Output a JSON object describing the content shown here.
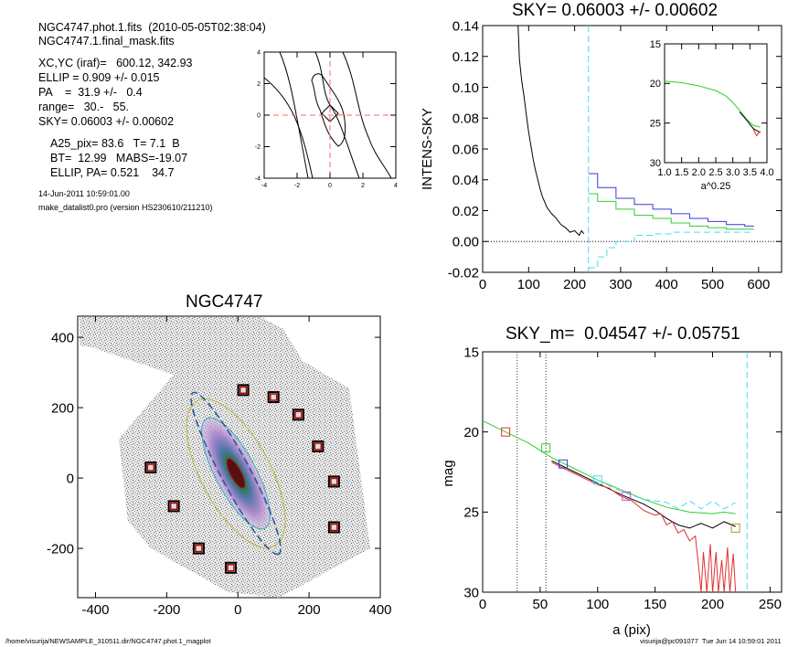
{
  "info": {
    "file_line": "NGC4747.phot.1.fits  (2010-05-05T02:38:04)",
    "mask_line": "NGC4747.1.final_mask.fits",
    "xcyc_line": "XC,YC (iraf)=   600.12, 342.93",
    "ellip_line": "ELLIP = 0.909 +/- 0.015",
    "pa_line": "PA    =  31.9 +/-   0.4",
    "range_line": "range=   30.-   55.",
    "sky_line": "SKY= 0.06003 +/- 0.00602",
    "a25_line": "A25_pix= 83.6   T= 7.1  B",
    "bt_line": "BT=  12.99   MABS=-19.07",
    "ellip_pa_line": "ELLIP, PA= 0.521    34.7",
    "date_line": "14-Jun-2011 10:59:01.00",
    "prog_line": "make_datalist0.pro (version HS230610/211210)"
  },
  "footer": {
    "left": "/home/visurija/NEWSAMPLE_310511.dir/NGC4747.phot.1_magplot",
    "right": "visurija@pc091077  Tue Jun 14 10:59:01 2011"
  },
  "colors": {
    "black_profile": "#000000",
    "blue_profile": "#3b3bd6",
    "green_profile": "#33cc33",
    "cyan_dashed": "#44ddee",
    "red_profile": "#e03030",
    "red_marker": "#aa0000",
    "axis": "#000000",
    "dotted_line": "#333333"
  },
  "chart_data": [
    {
      "id": "contour",
      "type": "contour",
      "xlim": [
        -4,
        4
      ],
      "ylim": [
        -4,
        4
      ],
      "xticks": [
        -4,
        -2,
        0,
        2,
        4
      ],
      "yticks": [
        -4,
        -2,
        0,
        2,
        4
      ],
      "crosshair": [
        0,
        0
      ]
    },
    {
      "id": "intens",
      "type": "line",
      "title": "SKY= 0.06003 +/- 0.00602",
      "ylabel": "INTENS-SKY",
      "xlim": [
        0,
        650
      ],
      "ylim": [
        -0.02,
        0.14
      ],
      "xticks": [
        0,
        100,
        200,
        300,
        400,
        500,
        600
      ],
      "yticks": [
        -0.02,
        0.0,
        0.02,
        0.04,
        0.06,
        0.08,
        0.1,
        0.12,
        0.14
      ],
      "ytick_labels": [
        "-0.02",
        "0.00",
        "0.02",
        "0.04",
        "0.06",
        "0.08",
        "0.10",
        "0.12",
        "0.14"
      ],
      "zero_line": true,
      "sky_radius": 230,
      "series": [
        {
          "color": "black",
          "x": [
            77,
            80,
            85,
            90,
            95,
            100,
            105,
            110,
            115,
            120,
            125,
            130,
            140,
            150,
            160,
            170,
            180,
            190,
            200,
            210,
            215,
            220
          ],
          "y": [
            0.14,
            0.118,
            0.104,
            0.094,
            0.082,
            0.071,
            0.062,
            0.053,
            0.046,
            0.04,
            0.034,
            0.029,
            0.022,
            0.018,
            0.015,
            0.011,
            0.009,
            0.006,
            0.007,
            0.004,
            0.007,
            0.005
          ]
        },
        {
          "color": "blue",
          "step": true,
          "x": [
            230,
            250,
            290,
            330,
            370,
            410,
            450,
            490,
            530,
            570
          ],
          "y": [
            0.044,
            0.035,
            0.028,
            0.024,
            0.021,
            0.018,
            0.015,
            0.013,
            0.011,
            0.01
          ]
        },
        {
          "color": "green",
          "step": true,
          "x": [
            230,
            250,
            290,
            330,
            370,
            410,
            450,
            490,
            530,
            570
          ],
          "y": [
            0.031,
            0.026,
            0.021,
            0.017,
            0.015,
            0.012,
            0.01,
            0.009,
            0.008,
            0.008
          ]
        },
        {
          "color": "cyan",
          "step": true,
          "x": [
            230,
            250,
            270,
            290,
            330,
            370,
            410,
            450,
            490,
            530,
            570
          ],
          "y": [
            -0.017,
            -0.01,
            -0.004,
            0.0,
            0.004,
            0.005,
            0.006,
            0.006,
            0.006,
            0.006,
            0.006
          ]
        }
      ]
    },
    {
      "id": "inset",
      "type": "line",
      "xlabel": "a^0.25",
      "xlim": [
        1.0,
        4.0
      ],
      "ylim": [
        15,
        30
      ],
      "y_reversed": true,
      "xticks": [
        1.0,
        1.5,
        2.0,
        2.5,
        3.0,
        3.5,
        4.0
      ],
      "xtick_labels": [
        "1.0",
        "1.5",
        "2.0",
        "2.5",
        "3.0",
        "3.5",
        "4.0"
      ],
      "yticks": [
        15,
        20,
        25,
        30
      ],
      "series": [
        {
          "color": "green",
          "x": [
            1.0,
            1.5,
            2.0,
            2.5,
            2.8,
            3.0,
            3.2,
            3.4,
            3.6,
            3.8
          ],
          "y": [
            19.7,
            19.9,
            20.3,
            20.9,
            21.6,
            22.4,
            23.4,
            24.5,
            25.3,
            25.5
          ]
        },
        {
          "color": "black",
          "x": [
            3.2,
            3.4,
            3.6,
            3.8
          ],
          "y": [
            23.6,
            24.6,
            25.7,
            26.2
          ]
        },
        {
          "color": "red",
          "x": [
            3.6,
            3.7,
            3.8
          ],
          "y": [
            25.8,
            26.6,
            26.0
          ]
        }
      ]
    },
    {
      "id": "image",
      "type": "scatter",
      "title": "NGC4747",
      "xlim": [
        -450,
        400
      ],
      "ylim": [
        -340,
        460
      ],
      "xticks": [
        -400,
        -200,
        0,
        200,
        400
      ],
      "yticks": [
        -200,
        0,
        200,
        400
      ],
      "markers": {
        "x": [
          15,
          100,
          170,
          225,
          270,
          270,
          -245,
          -180,
          -110,
          -20
        ],
        "y": [
          250,
          230,
          180,
          90,
          -10,
          -140,
          30,
          -80,
          -200,
          -255
        ]
      }
    },
    {
      "id": "mag",
      "type": "line",
      "title": "SKY_m=  0.04547 +/- 0.05751",
      "xlabel": "a (pix)",
      "ylabel": "mag",
      "xlim": [
        0,
        260
      ],
      "ylim": [
        15,
        30
      ],
      "y_reversed": true,
      "xticks": [
        0,
        50,
        100,
        150,
        200,
        250
      ],
      "yticks": [
        15,
        20,
        25,
        30
      ],
      "vlines": [
        30,
        55
      ],
      "sky_radius": 230,
      "series": [
        {
          "color": "green",
          "x": [
            0,
            20,
            40,
            60,
            80,
            100,
            120,
            140,
            160,
            180,
            200,
            210,
            220
          ],
          "y": [
            19.3,
            20.0,
            20.7,
            21.6,
            22.3,
            23.0,
            23.6,
            24.2,
            24.7,
            25.0,
            25.1,
            25.0,
            25.1
          ]
        },
        {
          "color": "cyan",
          "dashed": true,
          "x": [
            100,
            120,
            140,
            160,
            170,
            180,
            190,
            200,
            210,
            220
          ],
          "y": [
            23.0,
            23.7,
            24.2,
            24.4,
            24.8,
            24.3,
            24.8,
            24.3,
            24.8,
            24.4
          ]
        },
        {
          "color": "black",
          "x": [
            60,
            80,
            100,
            120,
            140,
            150,
            160,
            170,
            180,
            190,
            200,
            210,
            220
          ],
          "y": [
            21.8,
            22.5,
            23.2,
            23.9,
            24.5,
            24.9,
            25.4,
            25.8,
            26.0,
            25.7,
            26.0,
            25.6,
            25.9
          ]
        },
        {
          "color": "red",
          "x": [
            60,
            80,
            100,
            110,
            120,
            130,
            140,
            150,
            155,
            160,
            165,
            170,
            175,
            180,
            185,
            188,
            190,
            192,
            195,
            198,
            200,
            203,
            205,
            208,
            210,
            213,
            215,
            218,
            220
          ],
          "y": [
            21.9,
            22.6,
            23.3,
            23.5,
            24.0,
            24.3,
            24.9,
            25.2,
            25.1,
            25.8,
            25.6,
            26.3,
            26.1,
            26.8,
            26.5,
            28.5,
            30,
            27.5,
            30,
            27.0,
            30,
            27.5,
            30,
            28.0,
            30,
            27.2,
            30,
            27.6,
            30
          ]
        }
      ],
      "square_markers": [
        {
          "x": 20,
          "y": 20.0,
          "color": "red"
        },
        {
          "x": 55,
          "y": 21.0,
          "color": "green"
        },
        {
          "x": 70,
          "y": 22.0,
          "color": "blue"
        },
        {
          "x": 100,
          "y": 23.0,
          "color": "cyan"
        },
        {
          "x": 125,
          "y": 24.0,
          "color": "magenta"
        },
        {
          "x": 220,
          "y": 26.0,
          "color": "#b0a020"
        }
      ]
    }
  ]
}
